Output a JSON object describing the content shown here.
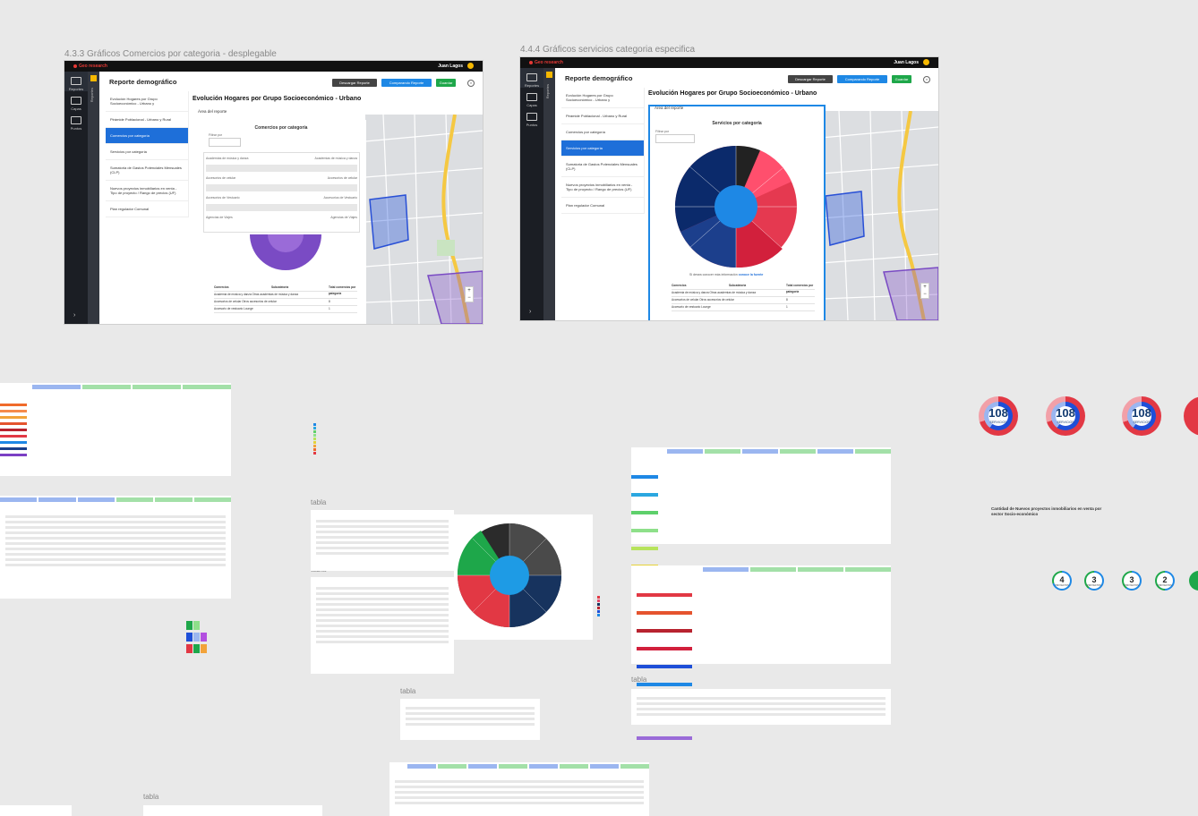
{
  "frame_left": {
    "title": "4.3.3  Gráficos Comercios por categoria -  desplegable",
    "brand": "Geo research",
    "user": "Juan Lagos",
    "header_title": "Reporte demográfico",
    "buttons": {
      "download": "Descargar Reporte",
      "compare": "Comparando Reporte",
      "save": "Guardar"
    },
    "nav": [
      {
        "label": "Reportes"
      },
      {
        "label": "Capas"
      },
      {
        "label": "Puntos"
      }
    ],
    "side_label": "Reportes",
    "menu": [
      "Evolución Hogares por Grupo Socioeconómico - Urbano y",
      "Pirámide Poblacional - Urbano y Rural",
      "Comercios por categoría",
      "Servicios por categoría",
      "Sumatoria de Gastos Potenciales Mensuales (CLP)",
      "Nuevos proyectos inmobiliarios en venta - Tipo de proyecto / Rango de precios (UF)",
      "Plan regulador Comunal"
    ],
    "active_menu": 2,
    "main_title": "Evolución Hogares por Grupo Socioeconómico - Urbano",
    "area": "Área del reporte",
    "panel_title": "Comercios por categoría",
    "filter_label": "Filtrar por",
    "checks": [
      "Academias de música y danza",
      "Academias de música y danza",
      "Accesorios de celular",
      "Accesorios de celular",
      "Accesorios de Vestuario",
      "Accesorios de Vestuario",
      "Agencias de Viajes",
      "Agencias de Viajes"
    ],
    "table_headers": [
      "Comercios",
      "Subcateíoria",
      "Total comercios por categoría"
    ],
    "table_rows": [
      [
        "Academia de música y danza  Otras academias de música y danza",
        "2"
      ],
      [
        "Accesorios de celular   Otros accesorios de celular",
        "8"
      ],
      [
        "Accesorio de vestuario  Lounge",
        "1"
      ]
    ]
  },
  "frame_right": {
    "title": "4.4.4 Gráficos servicios categoria especifica",
    "brand": "Geo research",
    "user": "Juan Lagos",
    "header_title": "Reporte demográfico",
    "buttons": {
      "download": "Descargar Reporte",
      "compare": "Comparando Reporte",
      "save": "Guardar"
    },
    "nav": [
      {
        "label": "Reportes"
      },
      {
        "label": "Capas"
      },
      {
        "label": "Puntos"
      }
    ],
    "side_label": "Reportes",
    "menu": [
      "Evolución Hogares por Grupo Socioeconómico - Urbano y",
      "Pirámide Poblacional - Urbano y Rural",
      "Comercios por categoría",
      "Servicios por categoría",
      "Sumatoria de Gastos Potenciales Mensuales (CLP)",
      "Nuevos proyectos inmobiliarios en venta - Tipo de proyecto / Rango de precios (UF)",
      "Plan regulador Comunal"
    ],
    "active_menu": 3,
    "main_title": "Evolución Hogares por Grupo Socioeconómico - Urbano",
    "area": "Área del reporte",
    "panel_title": "Servicios por categoría",
    "filter_label": "Filtrar por",
    "source_note": "Si desea conocer más información",
    "source_link": "conoce la fuente",
    "table_headers": [
      "Comercios",
      "Subcateíoria",
      "Total comercios por categoría"
    ],
    "table_rows": [
      [
        "Academia de música y danza  Otras academias de música y danza",
        "2"
      ],
      [
        "Accesorios de celular   Otros accesorios de celular",
        "8"
      ],
      [
        "Accesorio de vestuario  Lounge",
        "1"
      ]
    ]
  },
  "tabla_labels": [
    "tabla",
    "tabla",
    "tabla",
    "tabla",
    "tabla"
  ],
  "gauges": [
    {
      "value": "108",
      "label": "SERVICIOS"
    },
    {
      "value": "108",
      "label": "SERVICIOS"
    },
    {
      "value": "108",
      "label": "SERVICIOS"
    }
  ],
  "projects_caption": "Cantidad de Nuevos proyectos inmobiliarios en venta por sector Socio-económico",
  "small_gauges": [
    {
      "value": "4",
      "label": "PROYECTOS"
    },
    {
      "value": "3",
      "label": "PROYECTOS"
    },
    {
      "value": "3",
      "label": "PROYECTOS"
    },
    {
      "value": "2",
      "label": "PROYECTOS"
    }
  ],
  "colors": {
    "blue": "#1e88e5",
    "green": "#1ea74a",
    "accent": "#f6b800",
    "navy": "#123a70",
    "red": "#e53935"
  }
}
